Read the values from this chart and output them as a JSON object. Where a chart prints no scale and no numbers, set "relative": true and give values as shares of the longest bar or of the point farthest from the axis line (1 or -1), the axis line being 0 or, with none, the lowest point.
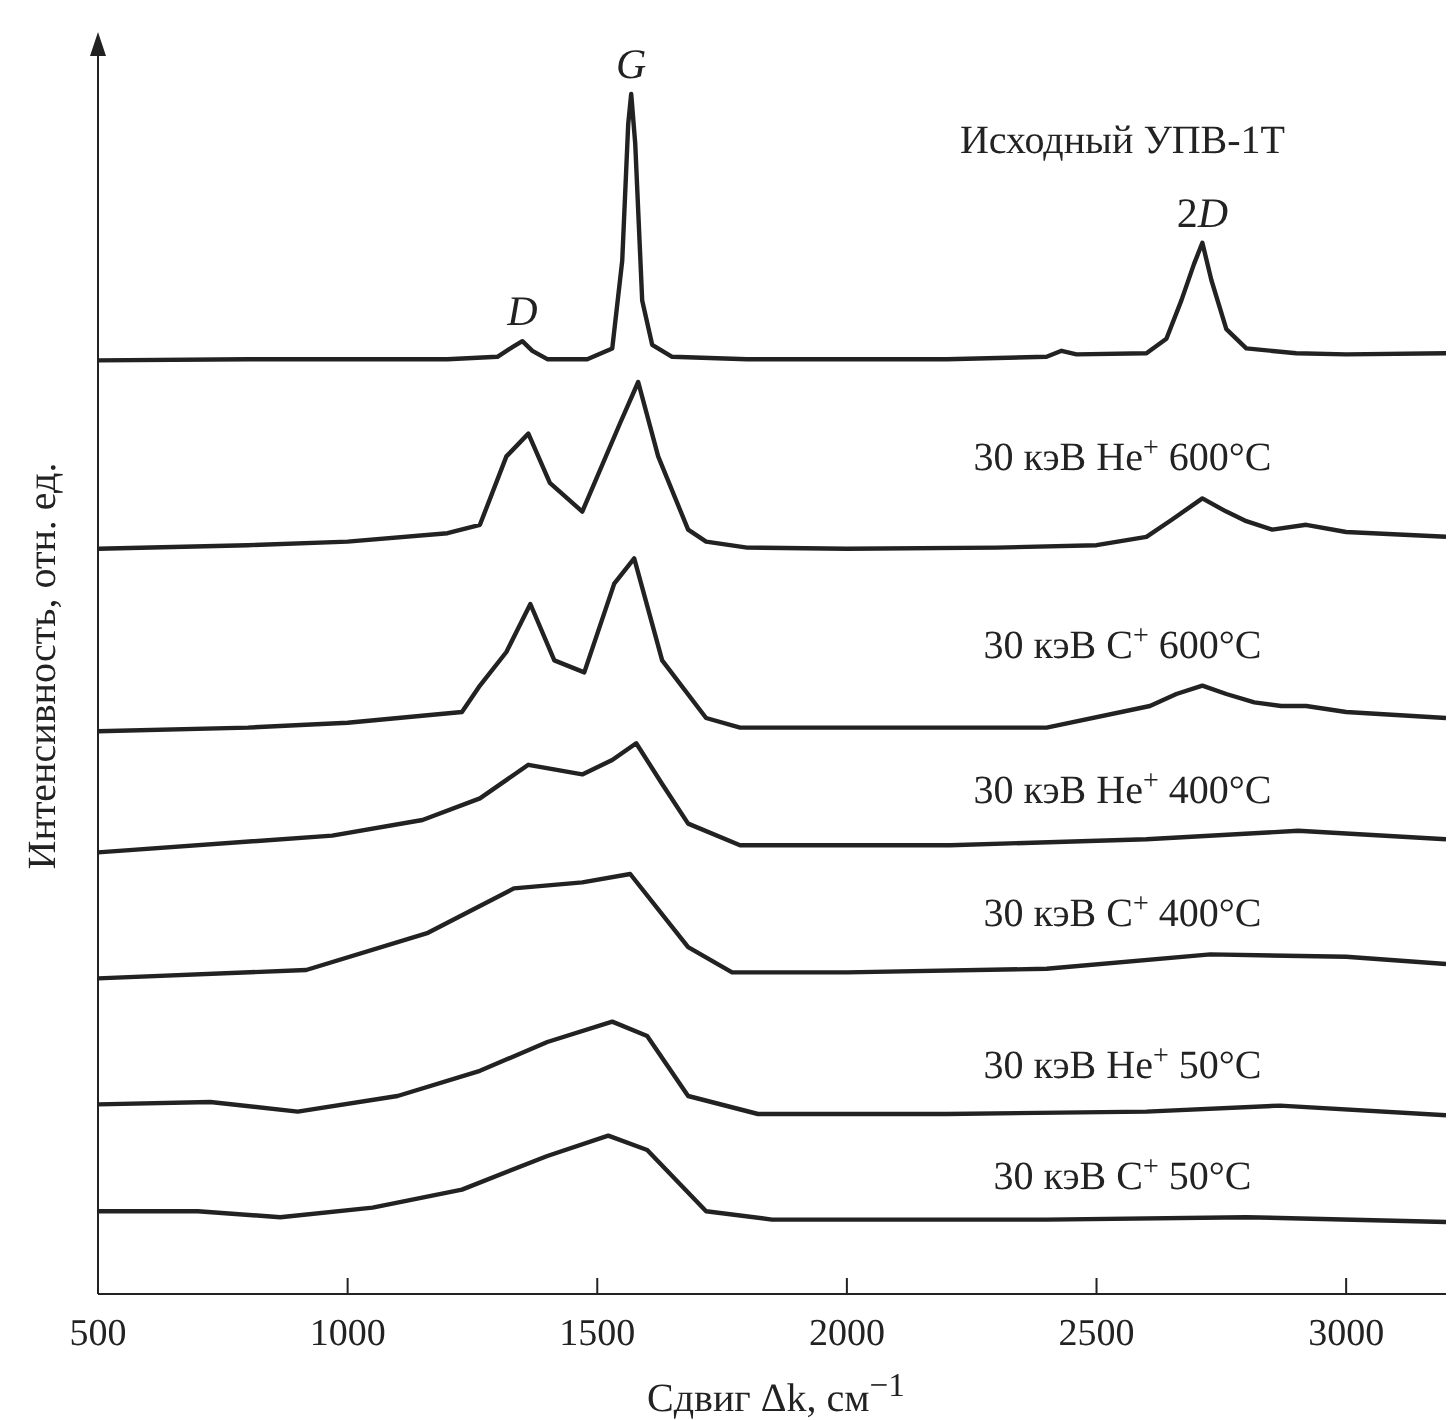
{
  "chart_data": {
    "type": "line",
    "relative": true,
    "xlabel": "Сдвиг Δk, см$^{−1}$",
    "ylabel": "Интенсивность, отн. ед.",
    "xlim": [
      500,
      3200
    ],
    "xticks": [
      500,
      1000,
      1500,
      2000,
      2500,
      3000
    ],
    "legend": false,
    "marker": "none",
    "line_style": "solid",
    "annotations": [
      {
        "text": "D",
        "x": 1350,
        "y": 0.794
      },
      {
        "text": "G",
        "x": 1568,
        "y": 1.0
      },
      {
        "text": "2D",
        "x": 2712,
        "y": 0.876
      }
    ],
    "series": [
      {
        "name": "Исходный УПВ-1Т",
        "color": "#222222",
        "x": [
          500,
          800,
          1000,
          1200,
          1300,
          1330,
          1350,
          1370,
          1400,
          1480,
          1530,
          1550,
          1562,
          1568,
          1576,
          1590,
          1610,
          1650,
          1800,
          2000,
          2200,
          2400,
          2430,
          2460,
          2600,
          2640,
          2670,
          2695,
          2712,
          2730,
          2760,
          2800,
          2900,
          3000,
          3200
        ],
        "values": [
          0.778,
          0.779,
          0.779,
          0.779,
          0.781,
          0.789,
          0.794,
          0.786,
          0.779,
          0.779,
          0.788,
          0.861,
          0.975,
          1.0,
          0.959,
          0.828,
          0.791,
          0.781,
          0.779,
          0.779,
          0.779,
          0.781,
          0.786,
          0.783,
          0.784,
          0.796,
          0.828,
          0.858,
          0.876,
          0.845,
          0.804,
          0.788,
          0.784,
          0.783,
          0.784
        ]
      },
      {
        "name": "30 кэВ He$^{+}$ 600°C",
        "color": "#222222",
        "x": [
          500,
          800,
          1000,
          1200,
          1265,
          1318,
          1362,
          1405,
          1470,
          1545,
          1582,
          1622,
          1682,
          1718,
          1800,
          2000,
          2300,
          2500,
          2600,
          2650,
          2712,
          2760,
          2800,
          2852,
          2920,
          3000,
          3200
        ],
        "values": [
          0.621,
          0.624,
          0.627,
          0.634,
          0.641,
          0.698,
          0.717,
          0.676,
          0.652,
          0.725,
          0.76,
          0.698,
          0.637,
          0.627,
          0.622,
          0.621,
          0.622,
          0.624,
          0.631,
          0.645,
          0.663,
          0.652,
          0.644,
          0.637,
          0.641,
          0.635,
          0.631
        ]
      },
      {
        "name": "30 кэВ C$^{+}$ 600°C",
        "color": "#222222",
        "x": [
          500,
          800,
          1000,
          1229,
          1265,
          1318,
          1366,
          1414,
          1474,
          1534,
          1574,
          1630,
          1718,
          1786,
          2000,
          2400,
          2607,
          2660,
          2712,
          2760,
          2816,
          2870,
          2920,
          3000,
          3200
        ],
        "values": [
          0.469,
          0.472,
          0.476,
          0.485,
          0.507,
          0.535,
          0.575,
          0.528,
          0.518,
          0.592,
          0.613,
          0.528,
          0.48,
          0.472,
          0.472,
          0.472,
          0.49,
          0.5,
          0.507,
          0.5,
          0.493,
          0.49,
          0.49,
          0.485,
          0.48
        ]
      },
      {
        "name": "30 кэВ He$^{+}$ 400°C",
        "color": "#222222",
        "x": [
          500,
          969,
          1150,
          1265,
          1362,
          1470,
          1530,
          1578,
          1630,
          1682,
          1786,
          2207,
          2600,
          2904,
          3200
        ],
        "values": [
          0.368,
          0.382,
          0.395,
          0.413,
          0.441,
          0.433,
          0.445,
          0.459,
          0.425,
          0.392,
          0.374,
          0.374,
          0.379,
          0.386,
          0.379
        ]
      },
      {
        "name": "30 кэВ C$^{+}$ 400°C",
        "color": "#222222",
        "x": [
          500,
          917,
          1161,
          1333,
          1470,
          1566,
          1682,
          1770,
          2000,
          2400,
          2728,
          3000,
          3200
        ],
        "values": [
          0.263,
          0.27,
          0.301,
          0.338,
          0.343,
          0.35,
          0.289,
          0.268,
          0.268,
          0.271,
          0.283,
          0.281,
          0.275
        ]
      },
      {
        "name": "30 кэВ He$^{+}$ 50°C",
        "color": "#222222",
        "x": [
          500,
          725,
          900,
          1100,
          1265,
          1400,
          1530,
          1600,
          1682,
          1822,
          2200,
          2600,
          2868,
          3200
        ],
        "values": [
          0.158,
          0.16,
          0.152,
          0.165,
          0.186,
          0.21,
          0.227,
          0.215,
          0.165,
          0.15,
          0.15,
          0.152,
          0.157,
          0.149
        ]
      },
      {
        "name": "30 кэВ C$^{+}$ 50°C",
        "color": "#222222",
        "x": [
          500,
          700,
          865,
          1050,
          1229,
          1400,
          1522,
          1600,
          1718,
          1850,
          2400,
          2800,
          3200
        ],
        "values": [
          0.069,
          0.069,
          0.064,
          0.072,
          0.087,
          0.115,
          0.132,
          0.12,
          0.069,
          0.062,
          0.062,
          0.064,
          0.06
        ]
      }
    ]
  }
}
